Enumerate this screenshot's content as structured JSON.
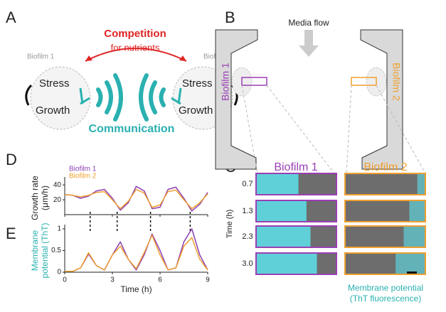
{
  "panels": {
    "a": "A",
    "b": "B",
    "c": "C",
    "d": "D",
    "e": "E"
  },
  "panel_a": {
    "competition": "Competition",
    "nutrients": "for nutrients",
    "biofilm1": "Biofilm 1",
    "biofilm2": "Biofilm 2",
    "stress": "Stress",
    "growth": "Growth",
    "communication": "Communication"
  },
  "panel_b": {
    "media_flow": "Media flow",
    "biofilm1": "Biofilm 1",
    "biofilm2": "Biofilm 2"
  },
  "panel_c": {
    "biofilm1": "Biofilm 1",
    "biofilm2": "Biofilm 2",
    "time_label": "Time (h)",
    "rows": [
      "0.7",
      "1.3",
      "2.3",
      "3.0"
    ],
    "caption": [
      "Membrane potential",
      "(ThT fluorescence)"
    ]
  },
  "chart_data": [
    {
      "type": "line",
      "ylabel": [
        "Growth rate",
        "(μm/h)"
      ],
      "x": [
        0,
        0.5,
        1,
        1.5,
        2,
        2.5,
        3,
        3.5,
        4,
        4.5,
        5,
        5.5,
        6,
        6.5,
        7,
        7.5,
        8,
        8.5,
        9
      ],
      "series": [
        {
          "name": "Biofilm 1",
          "color": "#8e3fb0",
          "values": [
            27,
            26,
            22,
            25,
            32,
            34,
            22,
            6,
            16,
            38,
            32,
            8,
            10,
            34,
            37,
            22,
            5,
            14,
            30
          ]
        },
        {
          "name": "Biofilm 2",
          "color": "#f0a030",
          "values": [
            27,
            26,
            24,
            26,
            30,
            31,
            20,
            8,
            18,
            34,
            29,
            10,
            13,
            31,
            33,
            20,
            8,
            16,
            28
          ]
        }
      ],
      "xlim": [
        0,
        9
      ],
      "xticks": [
        0,
        3,
        6,
        9
      ],
      "ylim": [
        0,
        45
      ],
      "yticks": [
        20,
        40
      ]
    },
    {
      "type": "line",
      "ylabel": [
        "Membrane",
        "potential (ThT)"
      ],
      "xlabel": "Time (h)",
      "x": [
        0,
        0.5,
        1,
        1.5,
        2,
        2.5,
        3,
        3.5,
        4,
        4.5,
        5,
        5.5,
        6,
        6.5,
        7,
        7.5,
        8,
        8.5,
        9
      ],
      "series": [
        {
          "name": "Biofilm 1",
          "color": "#8e3fb0",
          "values": [
            0.02,
            0.02,
            0.1,
            0.42,
            0.15,
            0.05,
            0.4,
            0.7,
            0.3,
            0.05,
            0.4,
            0.88,
            0.5,
            0.05,
            0.1,
            0.7,
            1.0,
            0.4,
            0.05
          ]
        },
        {
          "name": "Biofilm 2",
          "color": "#f0a030",
          "values": [
            0.02,
            0.02,
            0.1,
            0.45,
            0.15,
            0.05,
            0.4,
            0.6,
            0.3,
            0.08,
            0.45,
            0.85,
            0.4,
            0.05,
            0.1,
            0.6,
            0.8,
            0.3,
            0.05
          ]
        }
      ],
      "xlim": [
        0,
        9
      ],
      "xticks": [
        0,
        3,
        6,
        9
      ],
      "ylim": [
        0,
        1
      ],
      "yticks": [
        0,
        0.5,
        1
      ],
      "vlines": [
        1.6,
        3.3,
        5.4,
        7.9
      ]
    }
  ]
}
